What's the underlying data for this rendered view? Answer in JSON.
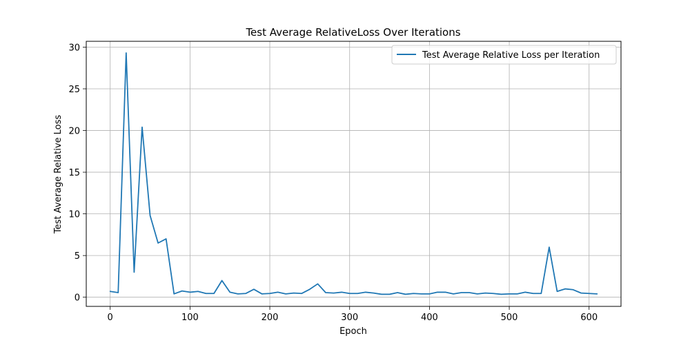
{
  "chart_data": {
    "type": "line",
    "title": "Test Average RelativeLoss Over Iterations",
    "xlabel": "Epoch",
    "ylabel": "Test Average Relative Loss",
    "xlim": [
      -30,
      640
    ],
    "ylim": [
      -1.1,
      30.7
    ],
    "xticks": [
      0,
      100,
      200,
      300,
      400,
      500,
      600
    ],
    "yticks": [
      0,
      5,
      10,
      15,
      20,
      25,
      30
    ],
    "grid": true,
    "legend_position": "top-right",
    "series_color": "#1f77b4",
    "series": [
      {
        "name": "Test Average Relative Loss per Iteration",
        "x": [
          0,
          10,
          20,
          30,
          40,
          50,
          60,
          70,
          80,
          90,
          100,
          110,
          120,
          130,
          140,
          150,
          160,
          170,
          180,
          190,
          200,
          210,
          220,
          230,
          240,
          250,
          260,
          270,
          280,
          290,
          300,
          310,
          320,
          330,
          340,
          350,
          360,
          370,
          380,
          390,
          400,
          410,
          420,
          430,
          440,
          450,
          460,
          470,
          480,
          490,
          500,
          510,
          520,
          530,
          540,
          550,
          560,
          570,
          580,
          590,
          600,
          610
        ],
        "y": [
          0.7,
          0.55,
          29.3,
          3.0,
          20.4,
          9.8,
          6.5,
          7.0,
          0.4,
          0.75,
          0.6,
          0.7,
          0.45,
          0.45,
          2.0,
          0.6,
          0.4,
          0.45,
          0.95,
          0.4,
          0.45,
          0.6,
          0.4,
          0.5,
          0.45,
          0.95,
          1.6,
          0.55,
          0.5,
          0.6,
          0.45,
          0.45,
          0.6,
          0.5,
          0.35,
          0.35,
          0.55,
          0.35,
          0.45,
          0.4,
          0.4,
          0.6,
          0.6,
          0.4,
          0.55,
          0.55,
          0.4,
          0.5,
          0.45,
          0.35,
          0.4,
          0.4,
          0.6,
          0.45,
          0.45,
          6.0,
          0.7,
          1.0,
          0.9,
          0.5,
          0.45,
          0.4
        ]
      }
    ]
  }
}
